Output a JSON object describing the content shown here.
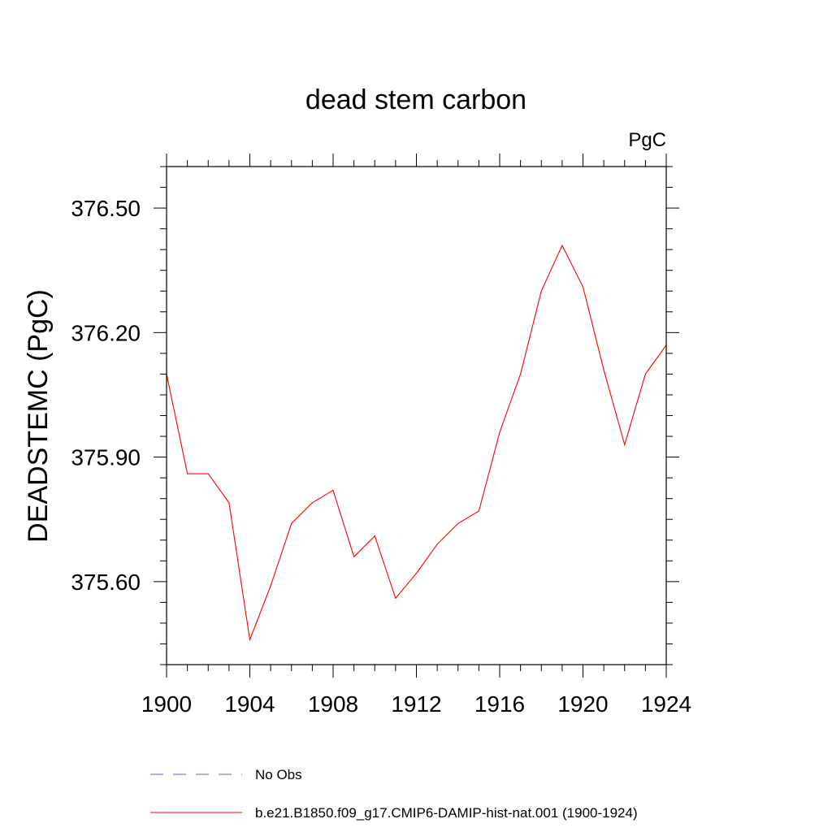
{
  "chart_data": {
    "type": "line",
    "title": "dead stem carbon",
    "units_label": "PgC",
    "ylabel": "DEADSTEMC  (PgC)",
    "xlabel": "",
    "xlim": [
      1900,
      1924
    ],
    "ylim": [
      375.4,
      376.6
    ],
    "x_ticks": [
      1900,
      1904,
      1908,
      1912,
      1916,
      1920,
      1924
    ],
    "x_tick_labels": [
      "1900",
      "1904",
      "1908",
      "1912",
      "1916",
      "1920",
      "1924"
    ],
    "y_ticks": [
      375.6,
      375.9,
      376.2,
      376.5
    ],
    "y_tick_labels": [
      "375.60",
      "375.90",
      "376.20",
      "376.50"
    ],
    "grid": false,
    "legend_position": "bottom",
    "series": [
      {
        "name": "b.e21.B1850.f09_g17.CMIP6-DAMIP-hist-nat.001 (1900-1924)",
        "color": "#ff0000",
        "style": "solid",
        "x": [
          1900,
          1901,
          1902,
          1903,
          1904,
          1905,
          1906,
          1907,
          1908,
          1909,
          1910,
          1911,
          1912,
          1913,
          1914,
          1915,
          1916,
          1917,
          1918,
          1919,
          1920,
          1921,
          1922,
          1923,
          1924
        ],
        "values": [
          376.1,
          375.86,
          375.86,
          375.79,
          375.46,
          375.59,
          375.74,
          375.79,
          375.82,
          375.66,
          375.71,
          375.56,
          375.62,
          375.69,
          375.74,
          375.77,
          375.96,
          376.1,
          376.3,
          376.41,
          376.31,
          376.11,
          375.93,
          376.1,
          376.17
        ]
      }
    ],
    "legend": [
      {
        "label": "No Obs",
        "color": "#6a5acd",
        "style": "dashed"
      },
      {
        "label": "b.e21.B1850.f09_g17.CMIP6-DAMIP-hist-nat.001 (1900-1924)",
        "color": "#ff0000",
        "style": "solid"
      }
    ]
  }
}
